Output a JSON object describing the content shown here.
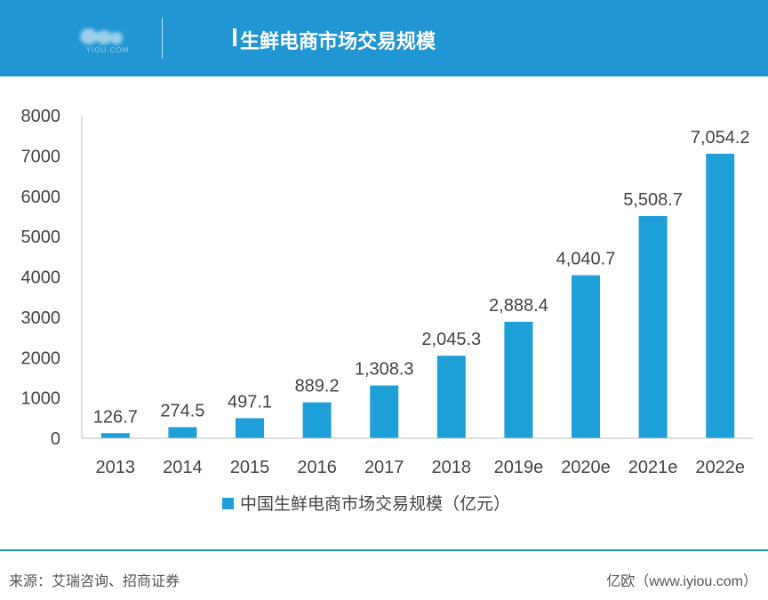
{
  "header": {
    "title": "生鲜电商市场交易规模",
    "bg_color": "#2196d3"
  },
  "chart_data": {
    "type": "bar",
    "categories": [
      "2013",
      "2014",
      "2015",
      "2016",
      "2017",
      "2018",
      "2019e",
      "2020e",
      "2021e",
      "2022e"
    ],
    "series": [
      {
        "name": "中国生鲜电商市场交易规模（亿元）",
        "values": [
          126.7,
          274.5,
          497.1,
          889.2,
          1308.3,
          2045.3,
          2888.4,
          4040.7,
          5508.7,
          7054.2
        ],
        "labels": [
          "126.7",
          "274.5",
          "497.1",
          "889.2",
          "1,308.3",
          "2,045.3",
          "2,888.4",
          "4,040.7",
          "5,508.7",
          "7,054.2"
        ],
        "color": "#1f9fd7"
      }
    ],
    "yticks": [
      "0",
      "1000",
      "2000",
      "3000",
      "4000",
      "5000",
      "6000",
      "7000",
      "8000"
    ],
    "ylim": [
      0,
      8000
    ],
    "grid": false,
    "legend_position": "bottom"
  },
  "footer": {
    "source": "来源：艾瑞咨询、招商证券",
    "credit": "亿欧（www.iyiou.com）"
  }
}
